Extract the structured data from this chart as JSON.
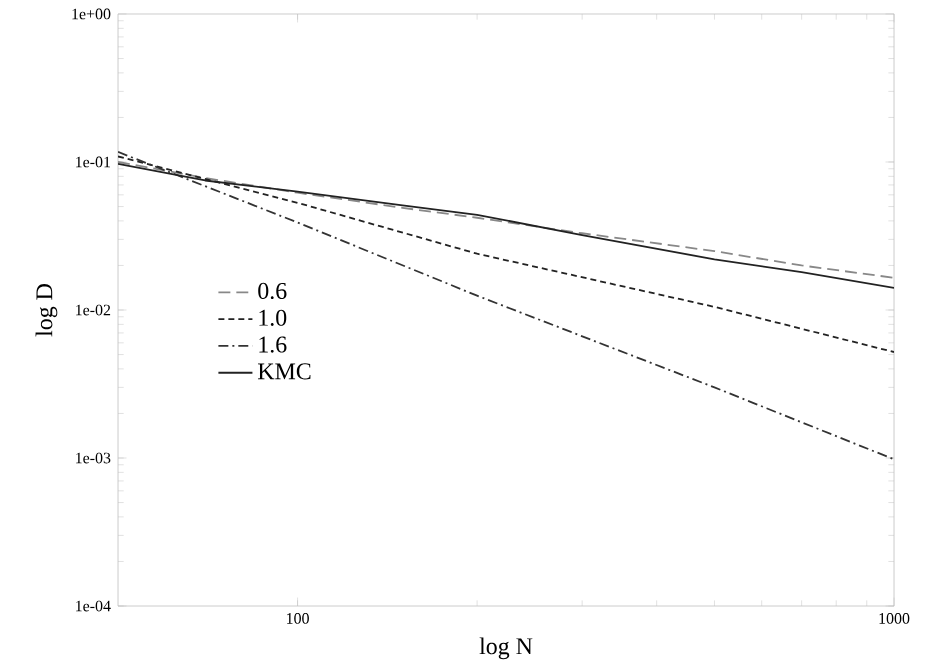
{
  "chart_data": {
    "type": "line",
    "xlabel": "log N",
    "ylabel": "log D",
    "log": "xy",
    "xlim": [
      50,
      1000
    ],
    "ylim": [
      0.0001,
      1
    ],
    "xticks": [
      100,
      1000
    ],
    "yticks": [
      {
        "value": 0.0001,
        "label": "1e-04"
      },
      {
        "value": 0.001,
        "label": "1e-03"
      },
      {
        "value": 0.01,
        "label": "1e-02"
      },
      {
        "value": 0.1,
        "label": "1e-01"
      },
      {
        "value": 1,
        "label": "1e+00"
      }
    ],
    "legend": "left",
    "grid": false,
    "marker": "none",
    "series": [
      {
        "name": "0.6",
        "color": "#888888",
        "line_style": "longdashed",
        "x": [
          50,
          70,
          100,
          150,
          200,
          300,
          500,
          700,
          1000
        ],
        "values": [
          0.1,
          0.078,
          0.062,
          0.049,
          0.042,
          0.033,
          0.025,
          0.02,
          0.0165
        ]
      },
      {
        "name": "1.0",
        "color": "#222222",
        "line_style": "dashed",
        "x": [
          50,
          100,
          200,
          500,
          1000
        ],
        "values": [
          0.109,
          0.053,
          0.024,
          0.0105,
          0.0052
        ]
      },
      {
        "name": "1.6",
        "color": "#333333",
        "line_style": "dashdotted",
        "x": [
          50,
          100,
          200,
          500,
          1000
        ],
        "values": [
          0.117,
          0.039,
          0.0125,
          0.003,
          0.00098
        ]
      },
      {
        "name": "KMC",
        "color": "#222222",
        "line_style": "solid",
        "x": [
          50,
          70,
          100,
          150,
          200,
          300,
          500,
          700,
          1000
        ],
        "values": [
          0.097,
          0.075,
          0.063,
          0.051,
          0.044,
          0.032,
          0.022,
          0.018,
          0.0141
        ]
      }
    ]
  }
}
